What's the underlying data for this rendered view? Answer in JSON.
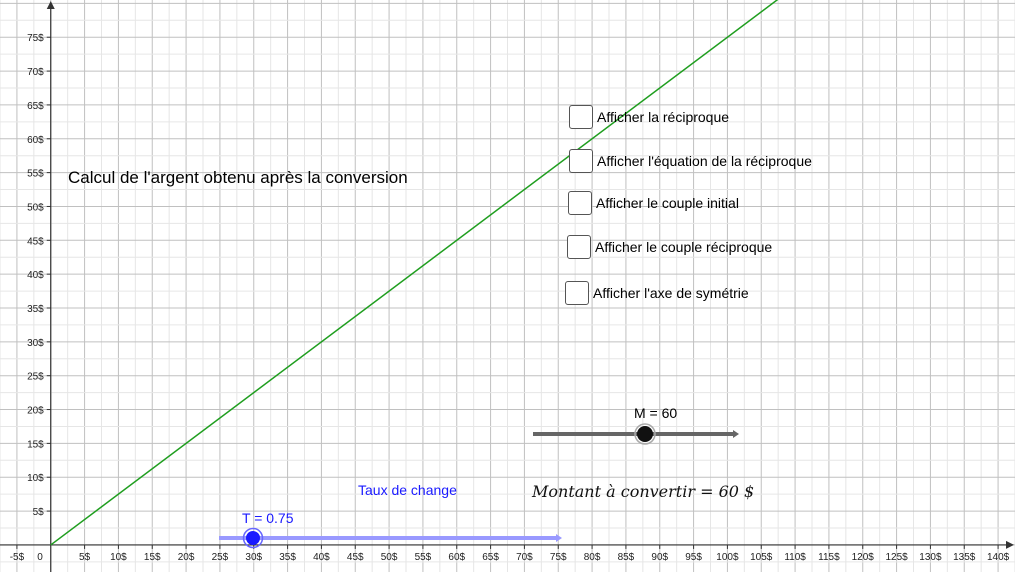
{
  "title": "Calcul de l'argent obtenu après la conversion",
  "checkboxes": [
    {
      "label": "Afficher la réciproque",
      "checked": false
    },
    {
      "label": "Afficher l'équation de la réciproque",
      "checked": false
    },
    {
      "label": "Afficher le couple initial",
      "checked": false
    },
    {
      "label": "Afficher le couple réciproque",
      "checked": false
    },
    {
      "label": "Afficher l'axe de symétrie",
      "checked": false
    }
  ],
  "sliders": {
    "montant": {
      "label": "M = 60",
      "value": 60,
      "min": 0,
      "max": 100,
      "color": "#666666",
      "knob_color": "#111111"
    },
    "taux": {
      "label": "T = 0.75",
      "value": 0.75,
      "min": 0,
      "max": 5,
      "color": "#9999ff",
      "knob_color": "#1a1aff"
    }
  },
  "taux_caption": "Taux de change",
  "formula": "Montant à convertir = 60 $",
  "chart_data": {
    "type": "line",
    "x_ticks": [
      "-5$",
      "0",
      "5$",
      "10$",
      "15$",
      "20$",
      "25$",
      "30$",
      "35$",
      "40$",
      "45$",
      "50$",
      "55$",
      "60$",
      "65$",
      "70$",
      "75$",
      "80$",
      "85$",
      "90$",
      "95$",
      "100$",
      "105$",
      "110$",
      "115$",
      "120$",
      "125$",
      "130$",
      "135$",
      "140$"
    ],
    "y_ticks": [
      "5$",
      "10$",
      "15$",
      "20$",
      "25$",
      "30$",
      "35$",
      "40$",
      "45$",
      "50$",
      "55$",
      "60$",
      "65$",
      "70$",
      "75$"
    ],
    "xlim": [
      -7.5,
      142.5
    ],
    "ylim": [
      -4,
      80.5
    ],
    "grid": true,
    "series": [
      {
        "x": [
          0,
          108
        ],
        "y": [
          0,
          81
        ],
        "color": "#1f9e1f"
      }
    ]
  }
}
